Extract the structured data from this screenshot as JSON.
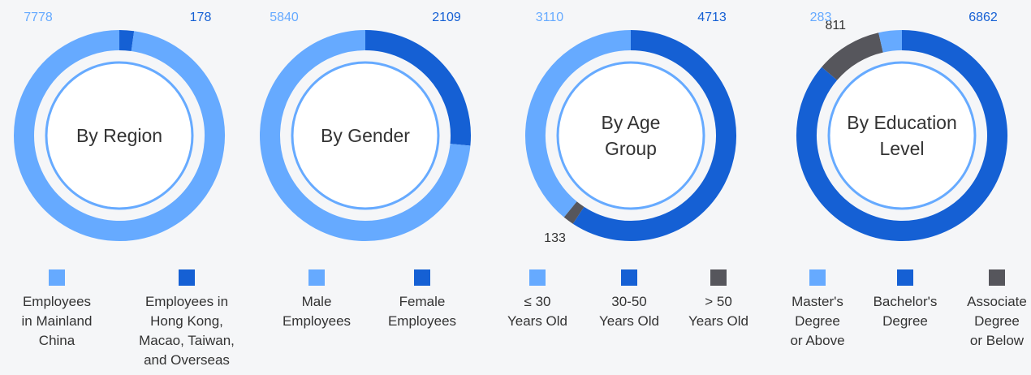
{
  "chart_data": [
    {
      "type": "pie",
      "donut": true,
      "title": "By Region",
      "categories": [
        "Employees\nin Mainland\nChina",
        "Employees in\nHong Kong,\nMacao, Taiwan,\nand Overseas"
      ],
      "values": [
        7778,
        178
      ],
      "colors": [
        "#66aaff",
        "#1560d4"
      ]
    },
    {
      "type": "pie",
      "donut": true,
      "title": "By Gender",
      "categories": [
        "Male\nEmployees",
        "Female\nEmployees"
      ],
      "values": [
        5840,
        2109
      ],
      "colors": [
        "#66aaff",
        "#1560d4"
      ]
    },
    {
      "type": "pie",
      "donut": true,
      "title": "By Age\nGroup",
      "categories": [
        "≤ 30\nYears Old",
        "30-50\nYears Old",
        "> 50\nYears Old"
      ],
      "values": [
        3110,
        4713,
        133
      ],
      "colors": [
        "#66aaff",
        "#1560d4",
        "#56565c"
      ]
    },
    {
      "type": "pie",
      "donut": true,
      "title": "By Education\nLevel",
      "categories": [
        "Master's\nDegree\nor Above",
        "Bachelor's\nDegree",
        "Associate\nDegree\nor Below"
      ],
      "values": [
        283,
        6862,
        811
      ],
      "colors": [
        "#66aaff",
        "#1560d4",
        "#56565c"
      ]
    }
  ]
}
